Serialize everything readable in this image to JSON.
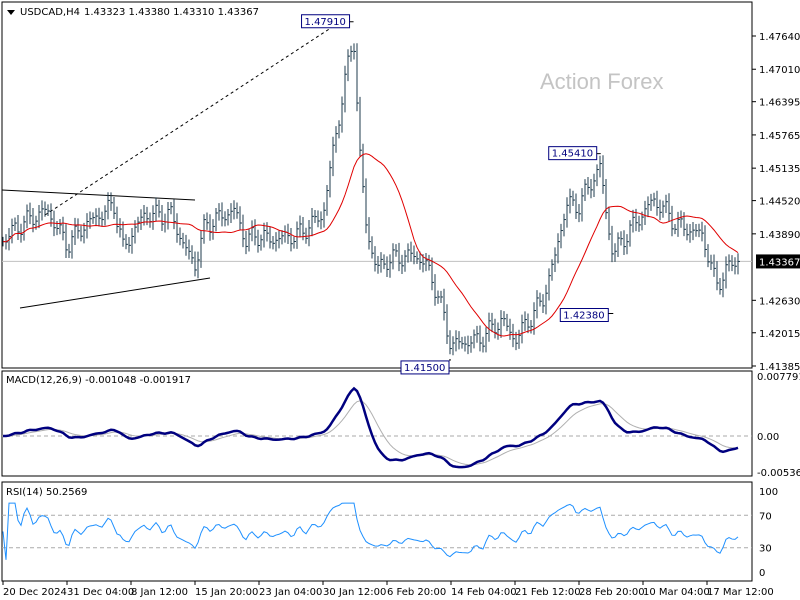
{
  "header": {
    "symbol": "USDCAD,H4",
    "ohlc": "1.43323 1.43380 1.43310 1.43367"
  },
  "watermark": "Action Forex",
  "colors": {
    "bars": "#1f3b4d",
    "ma": "#e00000",
    "macd": "#00007f",
    "signal": "#b0b0b0",
    "rsi": "#1e90ff",
    "price_tag_bg": "#000000"
  },
  "chart_data": [
    {
      "type": "bar",
      "subtype": "ohlc",
      "title": "USDCAD,H4",
      "ylim": [
        1.41385,
        1.4764
      ],
      "yticks": [
        "1.47640",
        "1.47010",
        "1.46395",
        "1.45765",
        "1.45135",
        "1.44520",
        "1.43890",
        "1.43260",
        "1.42630",
        "1.42015",
        "1.41385"
      ],
      "current_price": "1.43367",
      "xticks": [
        {
          "label": "20 Dec 2024",
          "date": "2024-12-20T00:00"
        },
        {
          "label": "31 Dec 04:00",
          "date": "2024-12-31T04:00"
        },
        {
          "label": "8 Jan 12:00",
          "date": "2025-01-08T12:00"
        },
        {
          "label": "15 Jan 20:00",
          "date": "2025-01-15T20:00"
        },
        {
          "label": "23 Jan 04:00",
          "date": "2025-01-23T04:00"
        },
        {
          "label": "30 Jan 12:00",
          "date": "2025-01-30T12:00"
        },
        {
          "label": "6 Feb 20:00",
          "date": "2025-02-06T20:00"
        },
        {
          "label": "14 Feb 04:00",
          "date": "2025-02-14T04:00"
        },
        {
          "label": "21 Feb 12:00",
          "date": "2025-02-21T12:00"
        },
        {
          "label": "28 Feb 20:00",
          "date": "2025-02-28T20:00"
        },
        {
          "label": "10 Mar 04:00",
          "date": "2025-03-10T04:00"
        },
        {
          "label": "17 Mar 12:00",
          "date": "2025-03-17T12:00"
        }
      ],
      "close_points": [
        [
          "2024-12-20T00:00",
          1.43774
        ],
        [
          "2024-12-23T00:00",
          1.44058
        ],
        [
          "2024-12-26T00:00",
          1.44248
        ],
        [
          "2024-12-27T16:00",
          1.44343
        ],
        [
          "2024-12-31T04:00",
          1.4368
        ],
        [
          "2025-01-02T12:00",
          1.44058
        ],
        [
          "2025-01-06T08:00",
          1.44437
        ],
        [
          "2025-01-07T12:00",
          1.43585
        ],
        [
          "2025-01-08T12:00",
          1.43869
        ],
        [
          "2025-01-10T00:00",
          1.44248
        ],
        [
          "2025-01-13T04:00",
          1.44248
        ],
        [
          "2025-01-14T12:00",
          1.4368
        ],
        [
          "2025-01-15T20:00",
          1.433
        ],
        [
          "2025-01-17T00:00",
          1.44058
        ],
        [
          "2025-01-20T08:00",
          1.44343
        ],
        [
          "2025-01-21T16:00",
          1.43774
        ],
        [
          "2025-01-23T04:00",
          1.43869
        ],
        [
          "2025-01-24T08:00",
          1.43774
        ],
        [
          "2025-01-27T16:00",
          1.43869
        ],
        [
          "2025-01-29T00:00",
          1.44058
        ],
        [
          "2025-01-30T12:00",
          1.44248
        ],
        [
          "2025-01-31T16:00",
          1.4548
        ],
        [
          "2025-02-03T00:00",
          1.477
        ],
        [
          "2025-02-03T16:00",
          1.4548
        ],
        [
          "2025-02-04T12:00",
          1.43964
        ],
        [
          "2025-02-05T16:00",
          1.43206
        ],
        [
          "2025-02-06T20:00",
          1.43395
        ],
        [
          "2025-02-10T00:00",
          1.4349
        ],
        [
          "2025-02-11T08:00",
          1.433
        ],
        [
          "2025-02-12T16:00",
          1.42732
        ],
        [
          "2025-02-14T04:00",
          1.41784
        ],
        [
          "2025-02-17T08:00",
          1.41879
        ],
        [
          "2025-02-18T16:00",
          1.42069
        ],
        [
          "2025-02-20T00:00",
          1.42258
        ],
        [
          "2025-02-21T12:00",
          1.41879
        ],
        [
          "2025-02-24T16:00",
          1.42637
        ],
        [
          "2025-02-26T00:00",
          1.43395
        ],
        [
          "2025-02-27T08:00",
          1.44437
        ],
        [
          "2025-02-28T20:00",
          1.44437
        ],
        [
          "2025-03-04T00:00",
          1.45196
        ],
        [
          "2025-03-04T16:00",
          1.44343
        ],
        [
          "2025-03-05T20:00",
          1.4349
        ],
        [
          "2025-03-07T04:00",
          1.43774
        ],
        [
          "2025-03-11T08:00",
          1.44532
        ],
        [
          "2025-03-12T16:00",
          1.44343
        ],
        [
          "2025-03-14T00:00",
          1.44058
        ],
        [
          "2025-03-17T00:00",
          1.43869
        ],
        [
          "2025-03-18T12:00",
          1.42922
        ],
        [
          "2025-03-19T20:00",
          1.43206
        ],
        [
          "2025-03-20T12:00",
          1.43367
        ]
      ],
      "annotations": [
        {
          "label": "1.47910",
          "date": "2025-02-03T00:00",
          "price": 1.4791
        },
        {
          "label": "1.45410",
          "date": "2025-03-04T00:00",
          "price": 1.4541
        },
        {
          "label": "1.42380",
          "date": "2025-03-05T20:00",
          "price": 1.4238
        },
        {
          "label": "1.41500",
          "date": "2025-02-14T04:00",
          "price": 1.415
        }
      ]
    },
    {
      "type": "line",
      "title": "MACD(12,26,9) -0.001048 -0.001917",
      "ylim": [
        -0.005367,
        0.007791
      ],
      "yticks": [
        "0.007791",
        "0.00",
        "-0.005367"
      ]
    },
    {
      "type": "line",
      "title": "RSI(14) 50.2569",
      "ylim": [
        0,
        100
      ],
      "yticks": [
        "100",
        "70",
        "30",
        "0"
      ],
      "levels": [
        70,
        30
      ]
    }
  ]
}
